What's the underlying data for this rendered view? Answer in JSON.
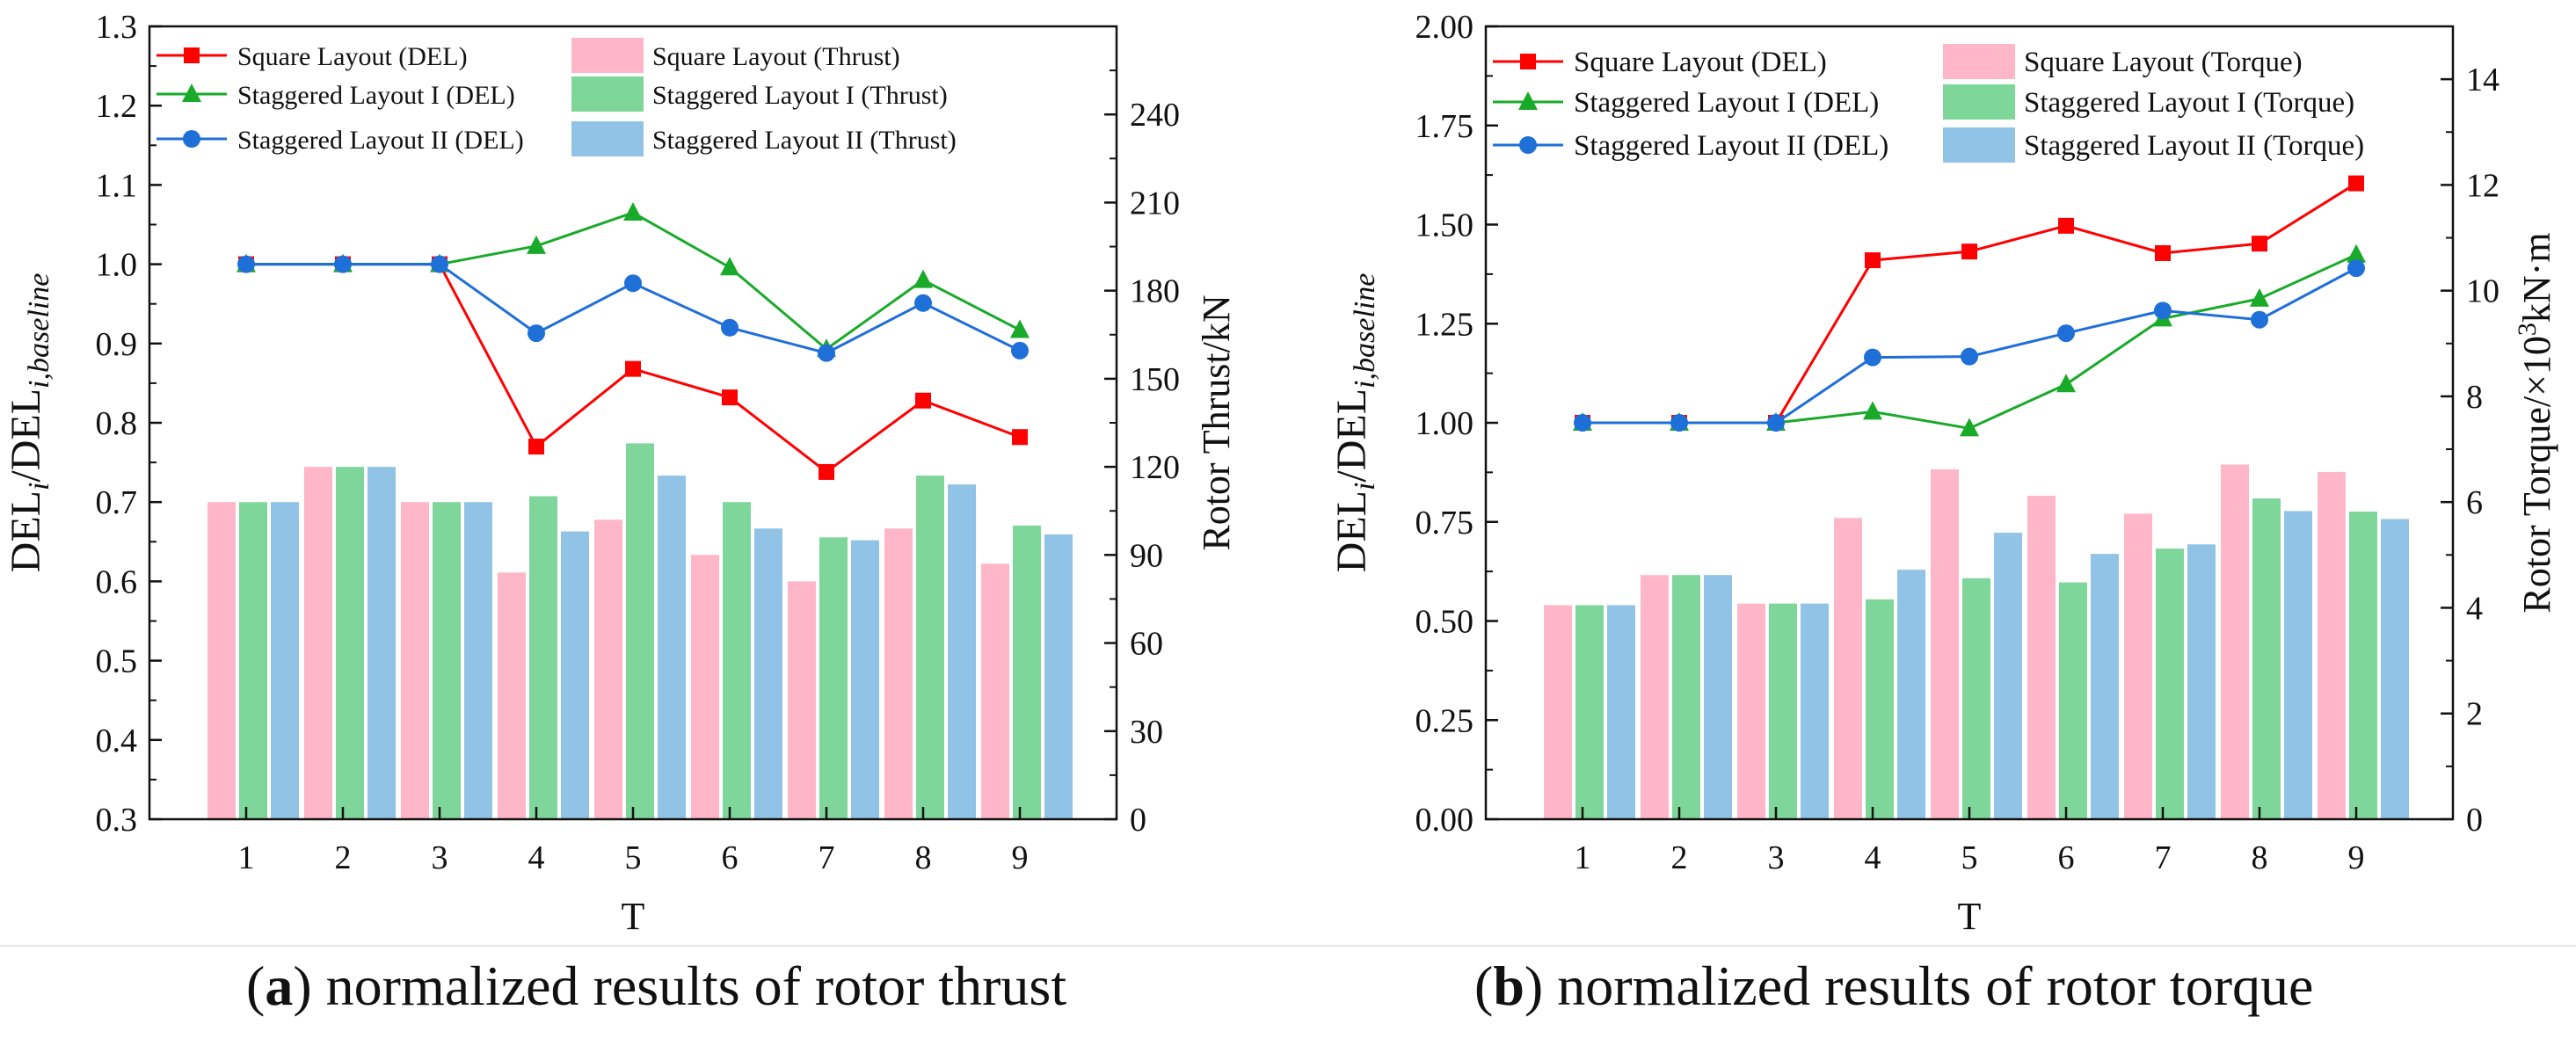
{
  "colors": {
    "square_line": "#ff0000",
    "staggered1_line": "#1aaa2a",
    "staggered2_line": "#1f6fd8",
    "square_bar": "#ffb6c9",
    "staggered1_bar": "#7fd69a",
    "staggered2_bar": "#90c3e6"
  },
  "chart_data": [
    {
      "type": "bar+line",
      "title": "",
      "xlabel": "T",
      "ylabel_left_main": "DEL",
      "ylabel_left_sub1": "i",
      "ylabel_left_mid": "/DEL",
      "ylabel_left_sub2": "i,baseline",
      "ylabel_right": "Rotor Thrust/kN",
      "categories": [
        "1",
        "2",
        "3",
        "4",
        "5",
        "6",
        "7",
        "8",
        "9"
      ],
      "left_axis": {
        "ylim": [
          0.3,
          1.3
        ],
        "ticks": [
          "0.3",
          "0.4",
          "0.5",
          "0.6",
          "0.7",
          "0.8",
          "0.9",
          "1.0",
          "1.1",
          "1.2",
          "1.3"
        ]
      },
      "right_axis": {
        "ylim": [
          0,
          270
        ],
        "ticks": [
          "0",
          "30",
          "60",
          "90",
          "120",
          "150",
          "180",
          "210",
          "240"
        ]
      },
      "line_series": [
        {
          "name": "Square Layout (DEL)",
          "marker": "square",
          "values": [
            1.0,
            1.0,
            1.0,
            0.77,
            0.868,
            0.832,
            0.738,
            0.828,
            0.782
          ]
        },
        {
          "name": "Staggered Layout I (DEL)",
          "marker": "triangle",
          "values": [
            1.0,
            1.0,
            1.0,
            1.023,
            1.065,
            0.996,
            0.893,
            0.98,
            0.917
          ]
        },
        {
          "name": "Staggered Layout II (DEL)",
          "marker": "circle",
          "values": [
            1.0,
            1.0,
            1.0,
            0.913,
            0.976,
            0.92,
            0.888,
            0.951,
            0.891
          ]
        }
      ],
      "bar_series": [
        {
          "name": "Square Layout (Thrust)",
          "values": [
            108,
            120,
            108,
            84,
            102,
            90,
            81,
            99,
            87
          ]
        },
        {
          "name": "Staggered Layout I (Thrust)",
          "values": [
            108,
            120,
            108,
            110,
            128,
            108,
            96,
            117,
            100
          ]
        },
        {
          "name": "Staggered Layout II (Thrust)",
          "values": [
            108,
            120,
            108,
            98,
            117,
            99,
            95,
            114,
            97
          ]
        }
      ],
      "caption_label": "a",
      "caption_text": " normalized results of rotor thrust"
    },
    {
      "type": "bar+line",
      "title": "",
      "xlabel": "T",
      "ylabel_left_main": "DEL",
      "ylabel_left_sub1": "i",
      "ylabel_left_mid": "/DEL",
      "ylabel_left_sub2": "i,baseline",
      "ylabel_right_pre": "Rotor Torque/×10",
      "ylabel_right_sup": "3",
      "ylabel_right_post": "kN·m",
      "categories": [
        "1",
        "2",
        "3",
        "4",
        "5",
        "6",
        "7",
        "8",
        "9"
      ],
      "left_axis": {
        "ylim": [
          0,
          2.0
        ],
        "ticks": [
          "0.00",
          "0.25",
          "0.50",
          "0.75",
          "1.00",
          "1.25",
          "1.50",
          "1.75",
          "2.00"
        ]
      },
      "right_axis": {
        "ylim": [
          0,
          15
        ],
        "ticks": [
          "0",
          "2",
          "4",
          "6",
          "8",
          "10",
          "12",
          "14"
        ]
      },
      "line_series": [
        {
          "name": "Square Layout (DEL)",
          "marker": "square",
          "values": [
            1.0,
            1.0,
            1.0,
            1.41,
            1.432,
            1.497,
            1.428,
            1.452,
            1.604
          ]
        },
        {
          "name": "Staggered Layout I (DEL)",
          "marker": "triangle",
          "values": [
            1.0,
            1.0,
            1.0,
            1.028,
            0.986,
            1.097,
            1.263,
            1.313,
            1.424
          ]
        },
        {
          "name": "Staggered Layout II (DEL)",
          "marker": "circle",
          "values": [
            1.0,
            1.0,
            1.0,
            1.165,
            1.167,
            1.226,
            1.283,
            1.26,
            1.39
          ]
        }
      ],
      "bar_series": [
        {
          "name": "Square Layout (Torque)",
          "values": [
            4.05,
            4.62,
            4.08,
            5.7,
            6.62,
            6.12,
            5.78,
            6.71,
            6.57
          ]
        },
        {
          "name": "Staggered Layout I (Torque)",
          "values": [
            4.05,
            4.62,
            4.08,
            4.16,
            4.56,
            4.48,
            5.12,
            6.07,
            5.82
          ]
        },
        {
          "name": "Staggered Layout II (Torque)",
          "values": [
            4.05,
            4.62,
            4.08,
            4.72,
            5.42,
            5.02,
            5.2,
            5.83,
            5.68
          ]
        }
      ],
      "caption_label": "b",
      "caption_text": " normalized results of rotor torque"
    }
  ]
}
